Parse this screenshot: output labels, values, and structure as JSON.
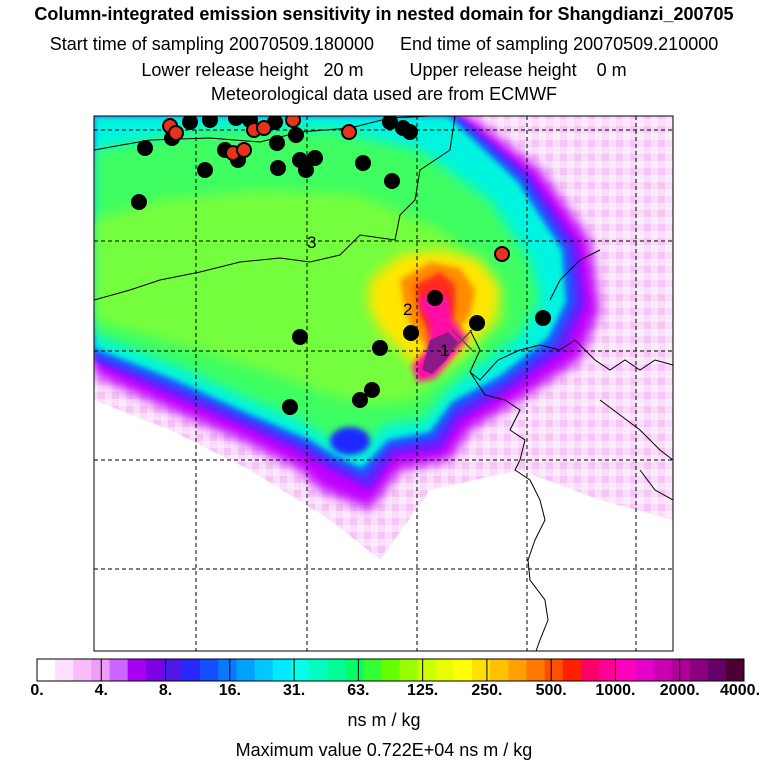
{
  "header": {
    "title": "Column-integrated emission sensitivity in nested domain for Shangdianzi_200705",
    "start_time": "Start time of sampling 20070509.180000",
    "end_time": "End time of sampling 20070509.210000",
    "lower_height": "Lower release height   20 m",
    "upper_height": "Upper release height    0 m",
    "met_data": "Meteorological data used are from ECMWF"
  },
  "map": {
    "point_labels": [
      "1",
      "2",
      "3"
    ],
    "colors": {
      "sensitivity_max": "#4a1f5c",
      "magenta": "#ff00aa",
      "red_core": "#ff2d00",
      "yellow": "#ffe600",
      "green": "#66ff33",
      "cyan": "#00ffd5",
      "blue": "#1a3cff",
      "violet": "#b300ff",
      "light_pink": "#f5ccf5",
      "marker_black": "#000000",
      "marker_red": "#e8321e"
    }
  },
  "colorbar": {
    "tick_labels": [
      "0.",
      "4.",
      "8.",
      "16.",
      "31.",
      "63.",
      "125.",
      "250.",
      "500.",
      "1000.",
      "2000.",
      "4000."
    ],
    "colors": [
      "#ffffff",
      "#fde0fd",
      "#f8bdf8",
      "#ee9cf5",
      "#cc66ff",
      "#a800f0",
      "#7d00e6",
      "#5018e8",
      "#2828ff",
      "#1450ff",
      "#0a78ff",
      "#00a0ff",
      "#00c8ff",
      "#00eaff",
      "#00ffe6",
      "#00ffbf",
      "#00ff99",
      "#00ff66",
      "#33ff33",
      "#66ff00",
      "#99ff00",
      "#ccff00",
      "#e8ff00",
      "#ffff00",
      "#ffe000",
      "#ffc000",
      "#ffa000",
      "#ff7800",
      "#ff5000",
      "#ff2000",
      "#ff0066",
      "#ff0099",
      "#ff00bf",
      "#e600cc",
      "#cc00b3",
      "#b00099",
      "#8c0080",
      "#660066",
      "#4d0033"
    ],
    "units": "ns m / kg",
    "max_value": "Maximum value  0.722E+04 ns m / kg"
  }
}
